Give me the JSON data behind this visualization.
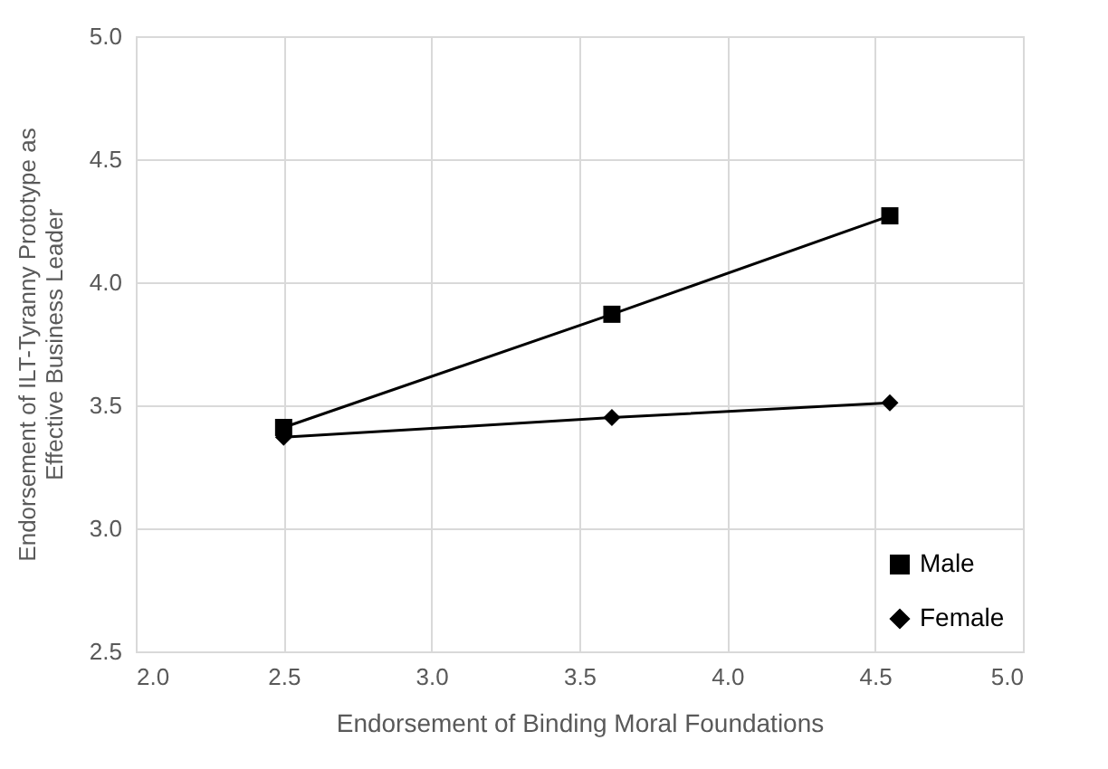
{
  "chart_data": {
    "type": "line",
    "xlabel": "Endorsement of Binding Moral Foundations",
    "ylabel": "Endorsement of ILT-Tyranny Prototype as\nEffective Business Leader",
    "x": [
      2.5,
      3.61,
      4.55
    ],
    "series": [
      {
        "name": "Male",
        "color": "#000000",
        "marker": "square",
        "values": [
          3.41,
          3.87,
          4.27
        ]
      },
      {
        "name": "Female",
        "color": "#000000",
        "marker": "diamond",
        "values": [
          3.37,
          3.45,
          3.51
        ]
      }
    ],
    "xlim": [
      2.0,
      5.0
    ],
    "xticks": [
      {
        "value": 2.0,
        "label": "2.0"
      },
      {
        "value": 2.5,
        "label": "2.5"
      },
      {
        "value": 3.0,
        "label": "3.0"
      },
      {
        "value": 3.5,
        "label": "3.5"
      },
      {
        "value": 4.0,
        "label": "4.0"
      },
      {
        "value": 4.5,
        "label": "4.5"
      },
      {
        "value": 5.0,
        "label": "5.0"
      }
    ],
    "ylim": [
      2.5,
      5.0
    ],
    "yticks": [
      {
        "value": 2.5,
        "label": "2.5"
      },
      {
        "value": 3.0,
        "label": "3.0"
      },
      {
        "value": 3.5,
        "label": "3.5"
      },
      {
        "value": 4.0,
        "label": "4.0"
      },
      {
        "value": 4.5,
        "label": "4.5"
      },
      {
        "value": 5.0,
        "label": "5.0"
      }
    ],
    "grid": true,
    "legend": "bottom right",
    "line_style": "solid"
  }
}
